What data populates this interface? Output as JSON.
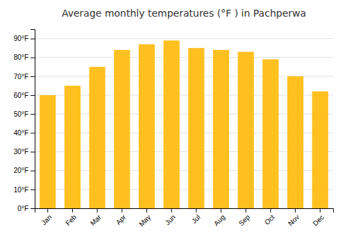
{
  "chart_data": {
    "type": "bar",
    "title": "Average monthly temperatures (°F ) in Pachperwa",
    "categories": [
      "Jan",
      "Feb",
      "Mar",
      "Apr",
      "May",
      "Jun",
      "Jul",
      "Aug",
      "Sep",
      "Oct",
      "Nov",
      "Dec"
    ],
    "values": [
      60,
      65,
      75,
      84,
      87,
      89,
      85,
      84,
      83,
      79,
      70,
      62
    ],
    "color": "#FFC020",
    "ylim": [
      0,
      95
    ],
    "yticks": [
      {
        "value": 0,
        "label": "0°F"
      },
      {
        "value": 10,
        "label": "10°F"
      },
      {
        "value": 20,
        "label": "20°F"
      },
      {
        "value": 30,
        "label": "30°F"
      },
      {
        "value": 40,
        "label": "40°F"
      },
      {
        "value": 50,
        "label": "50°F"
      },
      {
        "value": 60,
        "label": "60°F"
      },
      {
        "value": 70,
        "label": "70°F"
      },
      {
        "value": 80,
        "label": "80°F"
      },
      {
        "value": 90,
        "label": "90°F"
      }
    ],
    "grid": true
  }
}
